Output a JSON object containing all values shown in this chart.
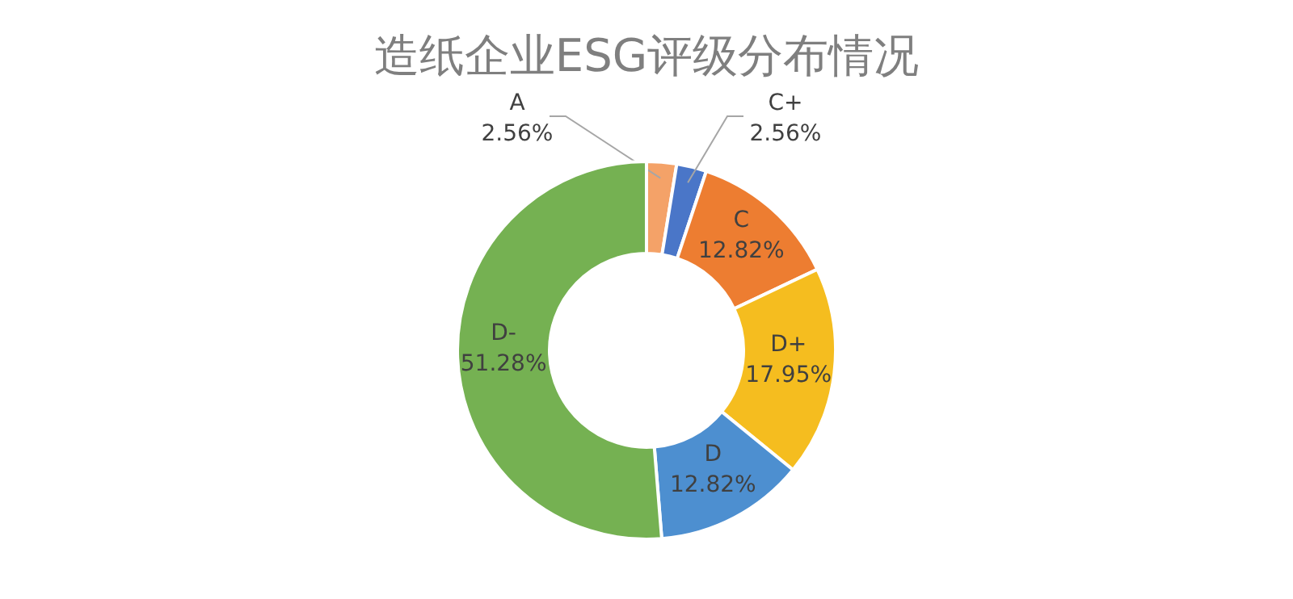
{
  "chart_data": {
    "type": "donut",
    "title": "造纸企业ESG评级分布情况",
    "categories": [
      "A",
      "C+",
      "C",
      "D+",
      "D",
      "D-"
    ],
    "values": [
      2.56,
      2.56,
      12.82,
      17.95,
      12.82,
      51.28
    ],
    "value_labels": [
      "2.56%",
      "2.56%",
      "12.82%",
      "17.95%",
      "12.82%",
      "51.28%"
    ],
    "colors": [
      "#f4a268",
      "#4a76c8",
      "#ed7d31",
      "#f5bd1f",
      "#4d8fd0",
      "#75b152"
    ]
  }
}
